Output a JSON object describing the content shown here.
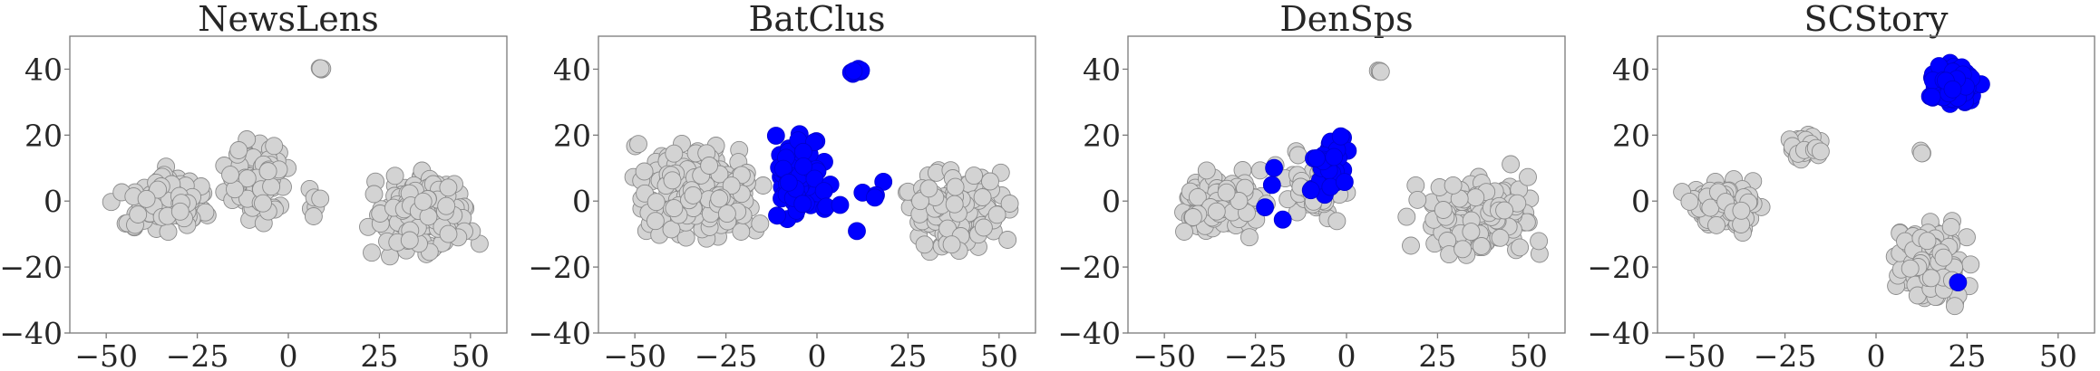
{
  "chart_data": [
    {
      "type": "scatter",
      "title": "NewsLens",
      "xlabel": "",
      "ylabel": "",
      "xlim": [
        -60,
        60
      ],
      "ylim": [
        -40,
        50
      ],
      "xticks": [
        "−50",
        "−25",
        "0",
        "25",
        "50"
      ],
      "yticks": [
        "−40",
        "−20",
        "0",
        "20",
        "40"
      ],
      "grid": false,
      "legend": "none",
      "clusters": [
        {
          "color": "#d3d3d3",
          "x": [
            -50,
            -18
          ],
          "y": [
            -13,
            11
          ],
          "n": 150
        },
        {
          "color": "#d3d3d3",
          "x": [
            -20,
            2
          ],
          "y": [
            -10,
            24
          ],
          "n": 95
        },
        {
          "color": "#d3d3d3",
          "x": [
            3,
            10
          ],
          "y": [
            -7,
            5
          ],
          "n": 6
        },
        {
          "color": "#d3d3d3",
          "x": [
            8,
            10
          ],
          "y": [
            38,
            41
          ],
          "n": 4
        },
        {
          "color": "#d3d3d3",
          "x": [
            16,
            56
          ],
          "y": [
            -20,
            12
          ],
          "n": 170
        }
      ]
    },
    {
      "type": "scatter",
      "title": "BatClus",
      "xlabel": "",
      "ylabel": "",
      "xlim": [
        -60,
        60
      ],
      "ylim": [
        -40,
        50
      ],
      "xticks": [
        "−50",
        "−25",
        "0",
        "25",
        "50"
      ],
      "yticks": [
        "−40",
        "−20",
        "0",
        "20",
        "40"
      ],
      "grid": false,
      "legend": "none",
      "clusters": [
        {
          "color": "#d3d3d3",
          "x": [
            -55,
            -10
          ],
          "y": [
            -16,
            21
          ],
          "n": 260
        },
        {
          "color": "#d3d3d3",
          "x": [
            20,
            56
          ],
          "y": [
            -20,
            12
          ],
          "n": 170
        },
        {
          "color": "#0000ff",
          "x": [
            -14,
            4
          ],
          "y": [
            -8,
            24
          ],
          "n": 120
        },
        {
          "color": "#0000ff",
          "x": [
            8,
            14
          ],
          "y": [
            38,
            41
          ],
          "n": 8
        },
        {
          "color": "#0000ff",
          "x": [
            -16,
            35
          ],
          "y": [
            -17,
            14
          ],
          "n": 12
        }
      ]
    },
    {
      "type": "scatter",
      "title": "DenSps",
      "xlabel": "",
      "ylabel": "",
      "xlim": [
        -60,
        60
      ],
      "ylim": [
        -40,
        50
      ],
      "xticks": [
        "−50",
        "−25",
        "0",
        "25",
        "50"
      ],
      "yticks": [
        "−40",
        "−20",
        "0",
        "20",
        "40"
      ],
      "grid": false,
      "legend": "none",
      "clusters": [
        {
          "color": "#d3d3d3",
          "x": [
            -50,
            -18
          ],
          "y": [
            -13,
            11
          ],
          "n": 150
        },
        {
          "color": "#d3d3d3",
          "x": [
            -20,
            2
          ],
          "y": [
            -10,
            20
          ],
          "n": 60
        },
        {
          "color": "#d3d3d3",
          "x": [
            8,
            10
          ],
          "y": [
            38,
            41
          ],
          "n": 4
        },
        {
          "color": "#d3d3d3",
          "x": [
            16,
            56
          ],
          "y": [
            -20,
            12
          ],
          "n": 170
        },
        {
          "color": "#0000ff",
          "x": [
            -12,
            2
          ],
          "y": [
            -3,
            25
          ],
          "n": 40
        },
        {
          "color": "#0000ff",
          "x": [
            -34,
            8
          ],
          "y": [
            -14,
            14
          ],
          "n": 6
        }
      ]
    },
    {
      "type": "scatter",
      "title": "SCStory",
      "xlabel": "",
      "ylabel": "",
      "xlim": [
        -60,
        60
      ],
      "ylim": [
        -40,
        50
      ],
      "xticks": [
        "−50",
        "−25",
        "0",
        "25",
        "50"
      ],
      "yticks": [
        "−40",
        "−20",
        "0",
        "20",
        "40"
      ],
      "grid": false,
      "legend": "none",
      "clusters": [
        {
          "color": "#d3d3d3",
          "x": [
            -55,
            -28
          ],
          "y": [
            -10,
            8
          ],
          "n": 120
        },
        {
          "color": "#d3d3d3",
          "x": [
            -26,
            -12
          ],
          "y": [
            11,
            22
          ],
          "n": 40
        },
        {
          "color": "#d3d3d3",
          "x": [
            0,
            28
          ],
          "y": [
            -35,
            -3
          ],
          "n": 140
        },
        {
          "color": "#d3d3d3",
          "x": [
            10,
            14
          ],
          "y": [
            13,
            16
          ],
          "n": 3
        },
        {
          "color": "#0000ff",
          "x": [
            13,
            30
          ],
          "y": [
            28,
            43
          ],
          "n": 150
        },
        {
          "color": "#0000ff",
          "x": [
            22,
            23
          ],
          "y": [
            -25,
            -24
          ],
          "n": 1
        }
      ]
    }
  ]
}
